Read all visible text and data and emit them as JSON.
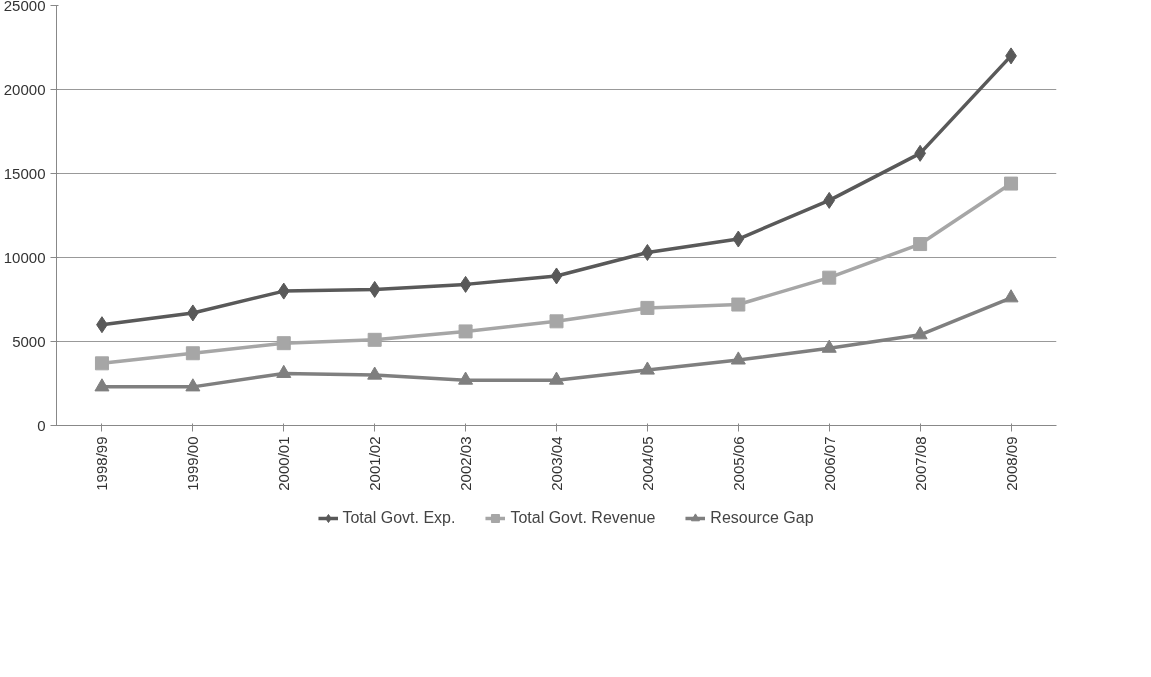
{
  "chart_data": {
    "type": "line",
    "categories": [
      "1998/99",
      "1999/00",
      "2000/01",
      "2001/02",
      "2002/03",
      "2003/04",
      "2004/05",
      "2005/06",
      "2006/07",
      "2007/08",
      "2008/09"
    ],
    "series": [
      {
        "name": "Total Govt. Exp.",
        "color": "#595959",
        "marker": "diamond",
        "values": [
          6000,
          6700,
          8000,
          8100,
          8400,
          8900,
          10300,
          11100,
          13400,
          16200,
          22000
        ]
      },
      {
        "name": "Total Govt. Revenue",
        "color": "#a6a6a6",
        "marker": "square",
        "values": [
          3700,
          4300,
          4900,
          5100,
          5600,
          6200,
          7000,
          7200,
          8800,
          10800,
          14400
        ]
      },
      {
        "name": "Resource Gap",
        "color": "#7f7f7f",
        "marker": "triangle",
        "values": [
          2300,
          2300,
          3100,
          3000,
          2700,
          2700,
          3300,
          3900,
          4600,
          5400,
          7600
        ]
      }
    ],
    "ylim": [
      0,
      25000
    ],
    "yticks": [
      0,
      5000,
      10000,
      15000,
      20000,
      25000
    ],
    "grid": "y",
    "legend": "bottom",
    "line_style": "solid"
  }
}
